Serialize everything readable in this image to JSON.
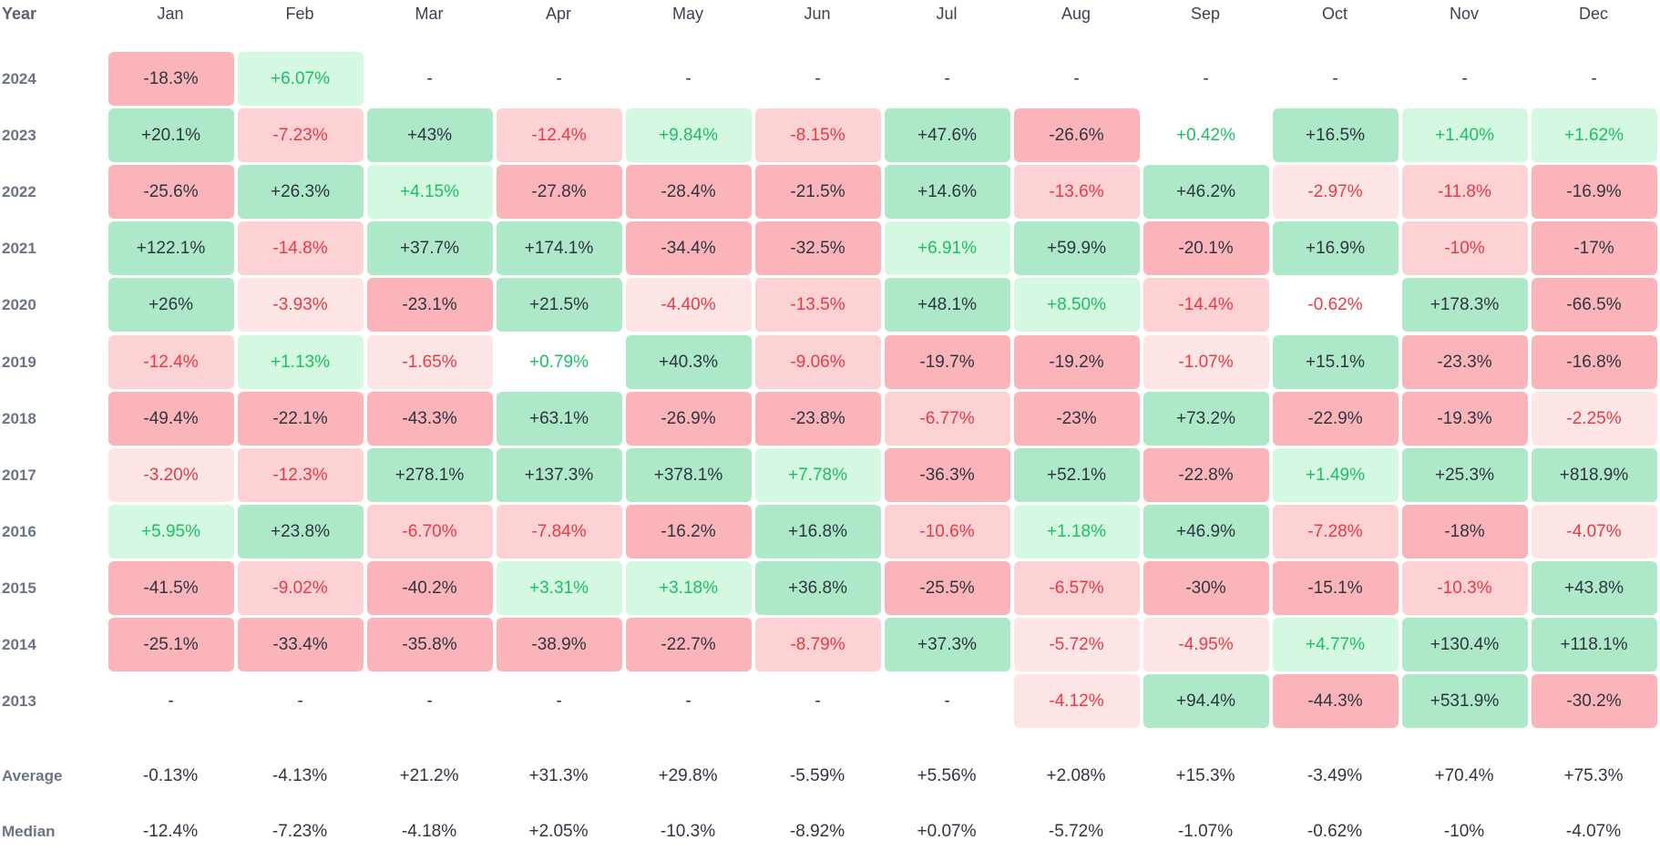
{
  "chart_data": {
    "type": "heatmap",
    "x_header": "Year",
    "months": [
      "Jan",
      "Feb",
      "Mar",
      "Apr",
      "May",
      "Jun",
      "Jul",
      "Aug",
      "Sep",
      "Oct",
      "Nov",
      "Dec"
    ],
    "years": [
      "2024",
      "2023",
      "2022",
      "2021",
      "2020",
      "2019",
      "2018",
      "2017",
      "2016",
      "2015",
      "2014",
      "2013"
    ],
    "cells": [
      [
        "-18.3%",
        "+6.07%",
        "-",
        "-",
        "-",
        "-",
        "-",
        "-",
        "-",
        "-",
        "-",
        "-"
      ],
      [
        "+20.1%",
        "-7.23%",
        "+43%",
        "-12.4%",
        "+9.84%",
        "-8.15%",
        "+47.6%",
        "-26.6%",
        "+0.42%",
        "+16.5%",
        "+1.40%",
        "+1.62%"
      ],
      [
        "-25.6%",
        "+26.3%",
        "+4.15%",
        "-27.8%",
        "-28.4%",
        "-21.5%",
        "+14.6%",
        "-13.6%",
        "+46.2%",
        "-2.97%",
        "-11.8%",
        "-16.9%"
      ],
      [
        "+122.1%",
        "-14.8%",
        "+37.7%",
        "+174.1%",
        "-34.4%",
        "-32.5%",
        "+6.91%",
        "+59.9%",
        "-20.1%",
        "+16.9%",
        "-10%",
        "-17%"
      ],
      [
        "+26%",
        "-3.93%",
        "-23.1%",
        "+21.5%",
        "-4.40%",
        "-13.5%",
        "+48.1%",
        "+8.50%",
        "-14.4%",
        "-0.62%",
        "+178.3%",
        "-66.5%"
      ],
      [
        "-12.4%",
        "+1.13%",
        "-1.65%",
        "+0.79%",
        "+40.3%",
        "-9.06%",
        "-19.7%",
        "-19.2%",
        "-1.07%",
        "+15.1%",
        "-23.3%",
        "-16.8%"
      ],
      [
        "-49.4%",
        "-22.1%",
        "-43.3%",
        "+63.1%",
        "-26.9%",
        "-23.8%",
        "-6.77%",
        "-23%",
        "+73.2%",
        "-22.9%",
        "-19.3%",
        "-2.25%"
      ],
      [
        "-3.20%",
        "-12.3%",
        "+278.1%",
        "+137.3%",
        "+378.1%",
        "+7.78%",
        "-36.3%",
        "+52.1%",
        "-22.8%",
        "+1.49%",
        "+25.3%",
        "+818.9%"
      ],
      [
        "+5.95%",
        "+23.8%",
        "-6.70%",
        "-7.84%",
        "-16.2%",
        "+16.8%",
        "-10.6%",
        "+1.18%",
        "+46.9%",
        "-7.28%",
        "-18%",
        "-4.07%"
      ],
      [
        "-41.5%",
        "-9.02%",
        "-40.2%",
        "+3.31%",
        "+3.18%",
        "+36.8%",
        "-25.5%",
        "-6.57%",
        "-30%",
        "-15.1%",
        "-10.3%",
        "+43.8%"
      ],
      [
        "-25.1%",
        "-33.4%",
        "-35.8%",
        "-38.9%",
        "-22.7%",
        "-8.79%",
        "+37.3%",
        "-5.72%",
        "-4.95%",
        "+4.77%",
        "+130.4%",
        "+118.1%"
      ],
      [
        "-",
        "-",
        "-",
        "-",
        "-",
        "-",
        "-",
        "-4.12%",
        "+94.4%",
        "-44.3%",
        "+531.9%",
        "-30.2%"
      ]
    ],
    "summary_rows": [
      {
        "label": "Average",
        "values": [
          "-0.13%",
          "-4.13%",
          "+21.2%",
          "+31.3%",
          "+29.8%",
          "-5.59%",
          "+5.56%",
          "+2.08%",
          "+15.3%",
          "-3.49%",
          "+70.4%",
          "+75.3%"
        ]
      },
      {
        "label": "Median",
        "values": [
          "-12.4%",
          "-7.23%",
          "-4.18%",
          "+2.05%",
          "-10.3%",
          "-8.92%",
          "+0.07%",
          "-5.72%",
          "-1.07%",
          "-0.62%",
          "-10%",
          "-4.07%"
        ]
      }
    ]
  },
  "colors": {
    "strong_positive_bg": "#ade8c8",
    "strong_positive_text": "#2f3542",
    "mild_positive_bg": "#d4f8e1",
    "mild_positive_text": "#1cbf63",
    "faint_positive_bg": "#e9fcef",
    "faint_positive_text": "#1cbf63",
    "strong_negative_bg": "#fbb4b9",
    "strong_negative_text": "#2f3542",
    "mild_negative_bg": "#fdd2d4",
    "mild_negative_text": "#ea3943",
    "faint_negative_bg": "#fee6e7",
    "faint_negative_text": "#ea3943",
    "neutral_text": "#2f3542",
    "label_text": "#6b7486"
  }
}
